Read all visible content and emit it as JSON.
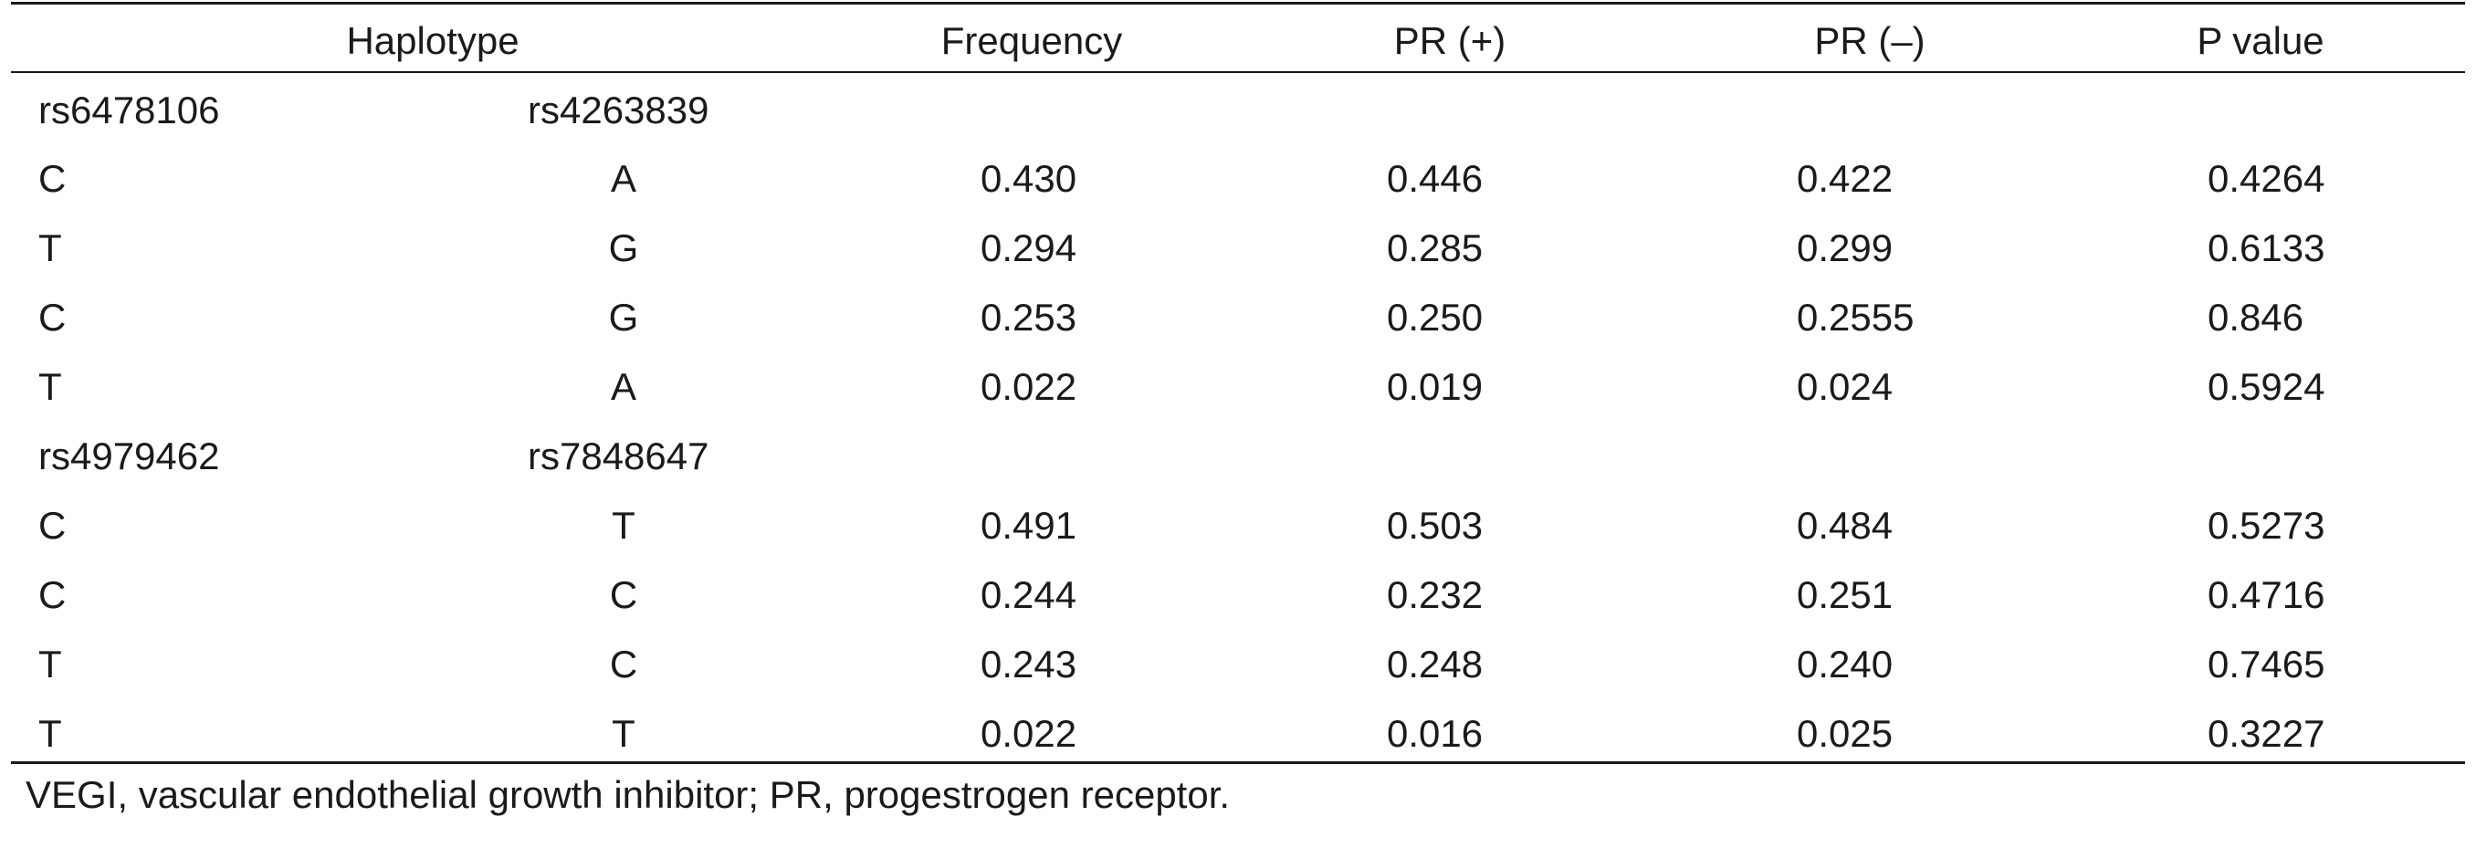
{
  "table": {
    "headers": {
      "haplotype": "Haplotype",
      "frequency": "Frequency",
      "pr_pos": "PR (+)",
      "pr_neg": "PR (–)",
      "p_value": "P value"
    },
    "groups": [
      {
        "snp1": "rs6478106",
        "snp2": "rs4263839",
        "rows": [
          {
            "a1": "C",
            "a2": "A",
            "frequency": "0.430",
            "pr_pos": "0.446",
            "pr_neg": "0.422",
            "p_value": "0.4264"
          },
          {
            "a1": "T",
            "a2": "G",
            "frequency": "0.294",
            "pr_pos": "0.285",
            "pr_neg": "0.299",
            "p_value": "0.6133"
          },
          {
            "a1": "C",
            "a2": "G",
            "frequency": "0.253",
            "pr_pos": "0.250",
            "pr_neg": "0.2555",
            "p_value": "0.846"
          },
          {
            "a1": "T",
            "a2": "A",
            "frequency": "0.022",
            "pr_pos": "0.019",
            "pr_neg": "0.024",
            "p_value": "0.5924"
          }
        ]
      },
      {
        "snp1": "rs4979462",
        "snp2": "rs7848647",
        "rows": [
          {
            "a1": "C",
            "a2": "T",
            "frequency": "0.491",
            "pr_pos": "0.503",
            "pr_neg": "0.484",
            "p_value": "0.5273"
          },
          {
            "a1": "C",
            "a2": "C",
            "frequency": "0.244",
            "pr_pos": "0.232",
            "pr_neg": "0.251",
            "p_value": "0.4716"
          },
          {
            "a1": "T",
            "a2": "C",
            "frequency": "0.243",
            "pr_pos": "0.248",
            "pr_neg": "0.240",
            "p_value": "0.7465"
          },
          {
            "a1": "T",
            "a2": "T",
            "frequency": "0.022",
            "pr_pos": "0.016",
            "pr_neg": "0.025",
            "p_value": "0.3227"
          }
        ]
      }
    ],
    "footnote": "VEGI, vascular endothelial growth inhibitor; PR, progestrogen receptor."
  }
}
